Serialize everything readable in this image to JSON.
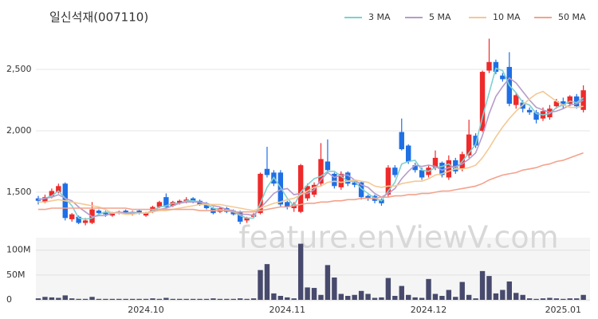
{
  "chart_data": {
    "type": "candlestick",
    "title": "일신석재(007110)",
    "watermark": "feature.enViewV.com",
    "categories": [
      null,
      null,
      null,
      null,
      null,
      null,
      null,
      null,
      null,
      null,
      null,
      null,
      null,
      null,
      null,
      null,
      "2024.10",
      null,
      null,
      null,
      null,
      null,
      null,
      null,
      null,
      null,
      null,
      null,
      null,
      null,
      null,
      null,
      null,
      null,
      null,
      null,
      null,
      "2024.11",
      null,
      null,
      null,
      null,
      null,
      null,
      null,
      null,
      null,
      null,
      null,
      null,
      null,
      null,
      null,
      null,
      null,
      null,
      null,
      null,
      "2024.12",
      null,
      null,
      null,
      null,
      null,
      null,
      null,
      null,
      null,
      null,
      null,
      null,
      null,
      null,
      null,
      null,
      null,
      null,
      null,
      "2025.01",
      null,
      null,
      null
    ],
    "open": [
      1450,
      1420,
      1460,
      1500,
      1570,
      1280,
      1300,
      1250,
      1250,
      1350,
      1340,
      1310,
      1330,
      1350,
      1320,
      1350,
      1310,
      1340,
      1380,
      1460,
      1390,
      1410,
      1420,
      1450,
      1430,
      1410,
      1370,
      1340,
      1370,
      1350,
      1340,
      1270,
      1300,
      1330,
      1690,
      1660,
      1660,
      1420,
      1370,
      1340,
      1450,
      1480,
      1570,
      1750,
      1650,
      1540,
      1660,
      1580,
      1580,
      1470,
      1470,
      1440,
      1480,
      1700,
      1990,
      1880,
      1720,
      1680,
      1640,
      1700,
      1740,
      1620,
      1760,
      1690,
      1800,
      1960,
      2000,
      2490,
      2560,
      2450,
      2520,
      2210,
      2230,
      2170,
      2150,
      2100,
      2110,
      2200,
      2240,
      2220,
      2280,
      2170
    ],
    "high": [
      1470,
      1480,
      1530,
      1570,
      1580,
      1330,
      1310,
      1290,
      1420,
      1360,
      1350,
      1340,
      1350,
      1360,
      1350,
      1360,
      1340,
      1390,
      1430,
      1490,
      1430,
      1440,
      1460,
      1460,
      1440,
      1420,
      1380,
      1380,
      1380,
      1360,
      1350,
      1300,
      1330,
      1660,
      1870,
      1680,
      1680,
      1430,
      1420,
      1730,
      1570,
      1580,
      1900,
      1930,
      1660,
      1670,
      1670,
      1600,
      1590,
      1480,
      1480,
      1450,
      1720,
      1720,
      2100,
      1890,
      1740,
      1700,
      1720,
      1840,
      1750,
      1800,
      1780,
      1830,
      2090,
      1980,
      2490,
      2750,
      2580,
      2470,
      2640,
      2310,
      2250,
      2190,
      2170,
      2190,
      2210,
      2260,
      2270,
      2290,
      2300,
      2370
    ],
    "low": [
      1400,
      1410,
      1450,
      1490,
      1270,
      1260,
      1240,
      1230,
      1240,
      1320,
      1300,
      1300,
      1320,
      1320,
      1310,
      1320,
      1300,
      1330,
      1370,
      1370,
      1380,
      1400,
      1410,
      1410,
      1390,
      1360,
      1320,
      1330,
      1330,
      1310,
      1240,
      1250,
      1290,
      1320,
      1620,
      1550,
      1380,
      1360,
      1340,
      1330,
      1430,
      1460,
      1550,
      1660,
      1530,
      1520,
      1550,
      1540,
      1440,
      1430,
      1410,
      1390,
      1460,
      1620,
      1840,
      1730,
      1660,
      1600,
      1620,
      1680,
      1620,
      1600,
      1650,
      1670,
      1780,
      1860,
      1990,
      2470,
      2460,
      2400,
      2200,
      2180,
      2150,
      2130,
      2060,
      2080,
      2090,
      2180,
      2180,
      2200,
      2180,
      2150
    ],
    "close": [
      1430,
      1460,
      1510,
      1550,
      1290,
      1320,
      1250,
      1270,
      1360,
      1330,
      1320,
      1330,
      1340,
      1330,
      1340,
      1330,
      1330,
      1380,
      1420,
      1380,
      1420,
      1430,
      1440,
      1420,
      1400,
      1370,
      1330,
      1370,
      1340,
      1320,
      1260,
      1290,
      1320,
      1650,
      1640,
      1570,
      1400,
      1380,
      1400,
      1720,
      1550,
      1560,
      1770,
      1680,
      1550,
      1650,
      1570,
      1560,
      1460,
      1450,
      1430,
      1410,
      1700,
      1640,
      1850,
      1750,
      1680,
      1620,
      1700,
      1780,
      1640,
      1760,
      1670,
      1810,
      1970,
      1880,
      2480,
      2560,
      2480,
      2420,
      2220,
      2290,
      2180,
      2150,
      2090,
      2160,
      2180,
      2240,
      2210,
      2280,
      2200,
      2330
    ],
    "up_color": "#ee2a2a",
    "down_color": "#1f6fe5",
    "ylim": [
      1130,
      3000
    ],
    "yticks": [
      {
        "value": 1500,
        "label": "1,500"
      },
      {
        "value": 2000,
        "label": "2,000"
      },
      {
        "value": 2500,
        "label": "2,500"
      }
    ],
    "grid": true,
    "series": [
      {
        "name": "3 MA",
        "color": "#7fd0d0",
        "values": [
          1440,
          1450,
          1470,
          1510,
          1450,
          1390,
          1290,
          1280,
          1290,
          1320,
          1340,
          1330,
          1330,
          1330,
          1340,
          1330,
          1330,
          1350,
          1380,
          1390,
          1410,
          1410,
          1430,
          1430,
          1420,
          1400,
          1370,
          1360,
          1350,
          1340,
          1310,
          1290,
          1290,
          1410,
          1540,
          1620,
          1540,
          1450,
          1390,
          1500,
          1560,
          1610,
          1630,
          1670,
          1670,
          1630,
          1590,
          1590,
          1530,
          1490,
          1450,
          1430,
          1510,
          1580,
          1730,
          1750,
          1760,
          1680,
          1670,
          1700,
          1710,
          1730,
          1690,
          1750,
          1820,
          1890,
          2110,
          2310,
          2510,
          2490,
          2370,
          2310,
          2230,
          2210,
          2140,
          2130,
          2140,
          2190,
          2210,
          2240,
          2230,
          2270
        ]
      },
      {
        "name": "5 MA",
        "color": "#b59ccb",
        "values": [
          1440,
          1450,
          1460,
          1480,
          1450,
          1430,
          1380,
          1340,
          1300,
          1310,
          1310,
          1330,
          1340,
          1330,
          1330,
          1330,
          1330,
          1340,
          1360,
          1370,
          1390,
          1410,
          1420,
          1420,
          1420,
          1410,
          1390,
          1380,
          1360,
          1350,
          1320,
          1320,
          1310,
          1370,
          1430,
          1490,
          1520,
          1530,
          1480,
          1490,
          1490,
          1520,
          1600,
          1660,
          1620,
          1640,
          1640,
          1600,
          1560,
          1540,
          1490,
          1460,
          1490,
          1530,
          1610,
          1670,
          1720,
          1710,
          1720,
          1710,
          1680,
          1700,
          1710,
          1730,
          1770,
          1820,
          1960,
          2140,
          2280,
          2360,
          2430,
          2390,
          2320,
          2250,
          2190,
          2170,
          2150,
          2160,
          2180,
          2210,
          2220,
          2250
        ]
      },
      {
        "name": "10 MA",
        "color": "#f3c994",
        "values": [
          1420,
          1420,
          1430,
          1440,
          1430,
          1420,
          1410,
          1400,
          1390,
          1380,
          1360,
          1330,
          1330,
          1320,
          1320,
          1330,
          1330,
          1340,
          1350,
          1350,
          1360,
          1370,
          1380,
          1390,
          1400,
          1400,
          1400,
          1400,
          1390,
          1380,
          1370,
          1360,
          1350,
          1370,
          1390,
          1410,
          1420,
          1440,
          1450,
          1480,
          1510,
          1540,
          1550,
          1580,
          1590,
          1580,
          1590,
          1600,
          1590,
          1580,
          1550,
          1540,
          1550,
          1550,
          1570,
          1580,
          1590,
          1590,
          1610,
          1640,
          1650,
          1670,
          1690,
          1690,
          1700,
          1720,
          1780,
          1860,
          1950,
          2030,
          2100,
          2160,
          2210,
          2260,
          2300,
          2320,
          2280,
          2240,
          2210,
          2190,
          2190,
          2200
        ]
      },
      {
        "name": "50 MA",
        "color": "#f4a28c",
        "values": [
          1360,
          1360,
          1370,
          1370,
          1370,
          1370,
          1370,
          1370,
          1370,
          1370,
          1370,
          1370,
          1370,
          1370,
          1360,
          1360,
          1360,
          1360,
          1360,
          1360,
          1360,
          1360,
          1360,
          1360,
          1350,
          1350,
          1350,
          1350,
          1350,
          1340,
          1340,
          1340,
          1340,
          1350,
          1360,
          1370,
          1380,
          1380,
          1390,
          1400,
          1410,
          1410,
          1420,
          1420,
          1430,
          1430,
          1440,
          1440,
          1450,
          1450,
          1450,
          1460,
          1460,
          1470,
          1470,
          1480,
          1480,
          1490,
          1490,
          1500,
          1510,
          1510,
          1520,
          1530,
          1540,
          1550,
          1570,
          1600,
          1620,
          1640,
          1650,
          1660,
          1680,
          1690,
          1700,
          1720,
          1730,
          1750,
          1760,
          1780,
          1800,
          1820
        ]
      }
    ],
    "volume": {
      "color": "#474a6c",
      "ylim": [
        0,
        122000000
      ],
      "yticks": [
        0,
        {
          "value": 50000000,
          "label": "50M"
        },
        {
          "value": 100000000,
          "label": "100M"
        }
      ],
      "values": [
        3000000,
        6000000,
        5000000,
        4000000,
        9000000,
        3000000,
        2000000,
        2000000,
        6000000,
        2000000,
        2000000,
        2000000,
        2000000,
        2000000,
        2000000,
        2000000,
        2000000,
        3000000,
        2000000,
        4000000,
        2000000,
        2000000,
        2000000,
        2000000,
        2000000,
        2000000,
        3000000,
        2000000,
        2000000,
        2000000,
        3000000,
        2000000,
        3000000,
        60000000,
        72000000,
        13000000,
        8000000,
        5000000,
        3000000,
        113000000,
        25000000,
        24000000,
        10000000,
        70000000,
        45000000,
        12000000,
        8000000,
        10000000,
        18000000,
        12000000,
        4000000,
        5000000,
        44000000,
        8000000,
        28000000,
        10000000,
        5000000,
        4000000,
        42000000,
        12000000,
        8000000,
        20000000,
        6000000,
        36000000,
        10000000,
        3000000,
        58000000,
        48000000,
        13000000,
        20000000,
        37000000,
        14000000,
        10000000,
        3000000,
        2000000,
        3000000,
        4000000,
        3000000,
        2000000,
        3000000,
        3000000,
        10000000
      ]
    }
  }
}
